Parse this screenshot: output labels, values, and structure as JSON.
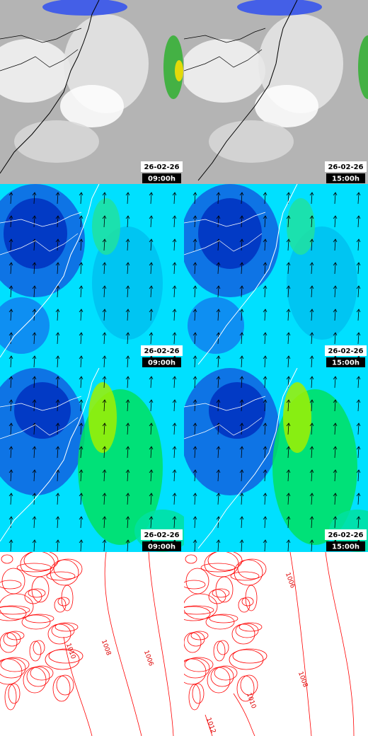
{
  "panels": [
    {
      "date": "26-02-26",
      "time": "09:00h"
    },
    {
      "date": "26-02-26",
      "time": "15:00h"
    },
    {
      "date": "26-02-26",
      "time": "09:00h"
    },
    {
      "date": "26-02-26",
      "time": "15:00h"
    },
    {
      "date": "26-02-26",
      "time": "09:00h"
    },
    {
      "date": "26-02-26",
      "time": "15:00h"
    },
    {
      "contour_labels": [
        "1010",
        "1008",
        "1006"
      ]
    },
    {
      "contour_labels": [
        "1006",
        "1008",
        "1010",
        "1012"
      ]
    }
  ]
}
